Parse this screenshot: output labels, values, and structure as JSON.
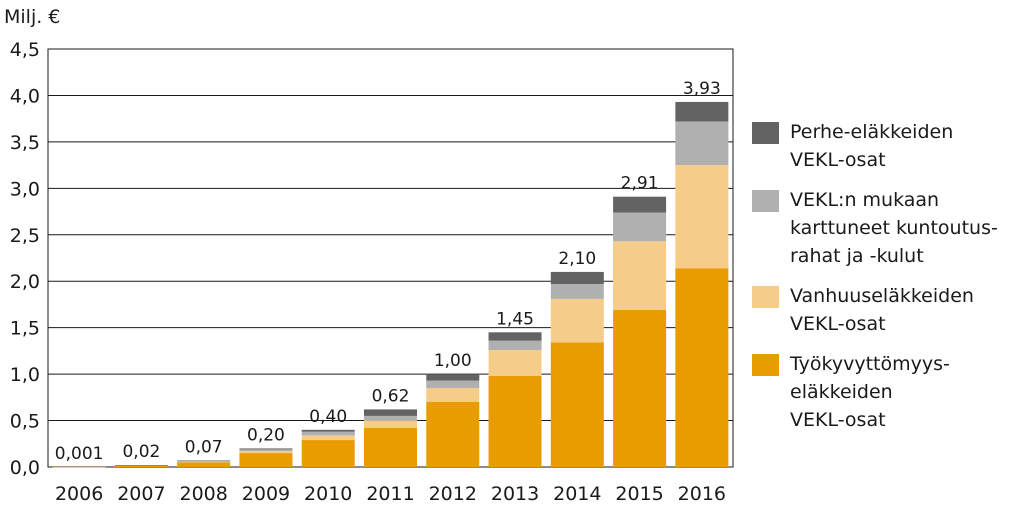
{
  "chart_data": {
    "type": "bar",
    "stacked": true,
    "ylabel": "Milj. €",
    "ylim": [
      0,
      4.5
    ],
    "yticks": [
      "0,0",
      "0,5",
      "1,0",
      "1,5",
      "2,0",
      "2,5",
      "3,0",
      "3,5",
      "4,0",
      "4,5"
    ],
    "grid": true,
    "legend_position": "right",
    "categories": [
      "2006",
      "2007",
      "2008",
      "2009",
      "2010",
      "2011",
      "2012",
      "2013",
      "2014",
      "2015",
      "2016"
    ],
    "totals_labels": [
      "0,001",
      "0,02",
      "0,07",
      "0,20",
      "0,40",
      "0,62",
      "1,00",
      "1,45",
      "2,10",
      "2,91",
      "3,93"
    ],
    "series": [
      {
        "name": "Työkyvyttömyys-\neläkkeiden\nVEKL-osat",
        "color": "#e89c00",
        "values": [
          0.001,
          0.015,
          0.05,
          0.15,
          0.29,
          0.42,
          0.7,
          0.98,
          1.34,
          1.69,
          2.14
        ]
      },
      {
        "name": "Vanhuuseläkkeiden\nVEKL-osat",
        "color": "#f5cc88",
        "values": [
          0,
          0.003,
          0.01,
          0.02,
          0.05,
          0.08,
          0.15,
          0.28,
          0.47,
          0.74,
          1.11
        ]
      },
      {
        "name": "VEKL:n mukaan\nkarttuneet kuntoutus-\nrahat ja -kulut",
        "color": "#b0b0b0",
        "values": [
          0,
          0.001,
          0.005,
          0.02,
          0.04,
          0.05,
          0.08,
          0.1,
          0.16,
          0.31,
          0.47
        ]
      },
      {
        "name": "Perhe-eläkkeiden\nVEKL-osat",
        "color": "#636363",
        "values": [
          0,
          0.001,
          0.005,
          0.01,
          0.02,
          0.07,
          0.07,
          0.09,
          0.13,
          0.17,
          0.21
        ]
      }
    ],
    "legend_order": [
      3,
      2,
      1,
      0
    ]
  }
}
